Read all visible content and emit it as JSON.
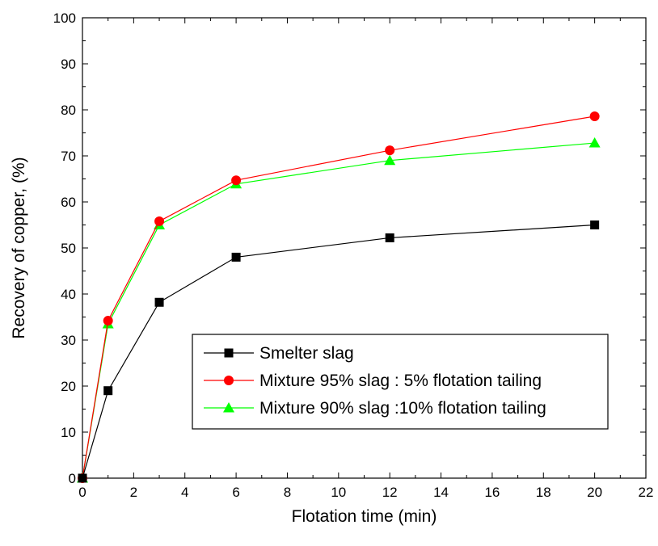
{
  "chart_data": {
    "type": "line",
    "title": "",
    "xlabel": "Flotation time (min)",
    "ylabel": "Recovery of copper, (%)",
    "xlim": [
      0,
      22
    ],
    "ylim": [
      0,
      100
    ],
    "x_ticks": [
      0,
      2,
      4,
      6,
      8,
      10,
      12,
      14,
      16,
      18,
      20,
      22
    ],
    "y_ticks": [
      0,
      10,
      20,
      30,
      40,
      50,
      60,
      70,
      80,
      90,
      100
    ],
    "grid": false,
    "legend_position": "lower-right",
    "series": [
      {
        "name": "Smelter slag",
        "color": "#000000",
        "marker": "square",
        "x": [
          0,
          1,
          3,
          6,
          12,
          20
        ],
        "y": [
          0,
          19,
          38.2,
          48,
          52.2,
          55
        ]
      },
      {
        "name": "Mixture 95% slag : 5% flotation tailing",
        "color": "#ff0000",
        "marker": "circle",
        "x": [
          0,
          1,
          3,
          6,
          12,
          20
        ],
        "y": [
          0,
          34.2,
          55.8,
          64.7,
          71.2,
          78.6
        ]
      },
      {
        "name": "Mixture 90% slag :10% flotation tailing",
        "color": "#00ff00",
        "marker": "triangle",
        "x": [
          0,
          1,
          3,
          6,
          12,
          20
        ],
        "y": [
          0,
          33.5,
          55,
          63.9,
          69,
          72.8
        ]
      }
    ]
  }
}
